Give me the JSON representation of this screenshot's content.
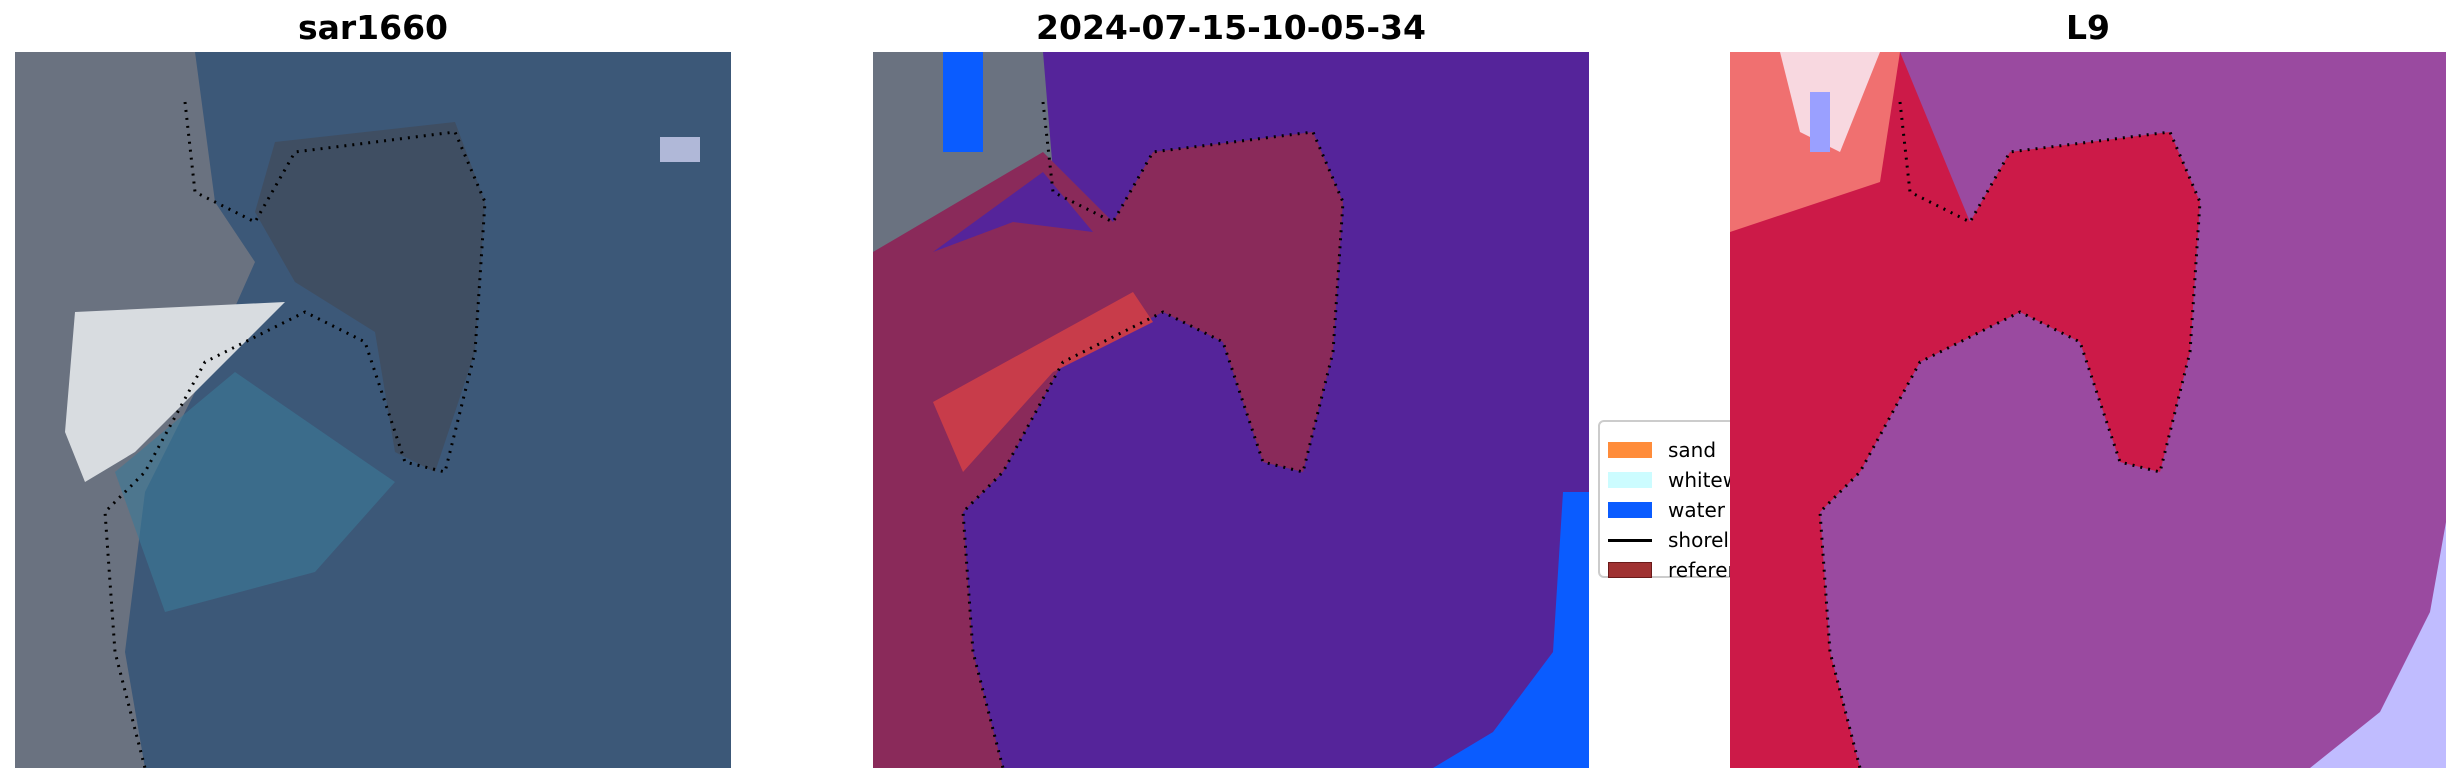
{
  "panels": [
    {
      "title": "sar1660"
    },
    {
      "title": "2024-07-15-10-05-34"
    },
    {
      "title": "L9"
    }
  ],
  "legend": {
    "placement": "center-right of middle panel",
    "items": [
      {
        "label": "sand",
        "color": "#ff8c3a",
        "kind": "patch"
      },
      {
        "label": "whitewater",
        "color": "#ccfcff",
        "kind": "patch"
      },
      {
        "label": "water",
        "color": "#0a5cff",
        "kind": "patch"
      },
      {
        "label": "shoreline",
        "color": "#000000",
        "kind": "line"
      },
      {
        "label": "reference",
        "color": "#a03232",
        "kind": "patch"
      }
    ]
  },
  "colors": {
    "water_class_overlay": "#55249a",
    "land_overlay": "#8a2a5a",
    "l9_water": "#9a4aa0",
    "l9_land": "#cc1a48"
  }
}
